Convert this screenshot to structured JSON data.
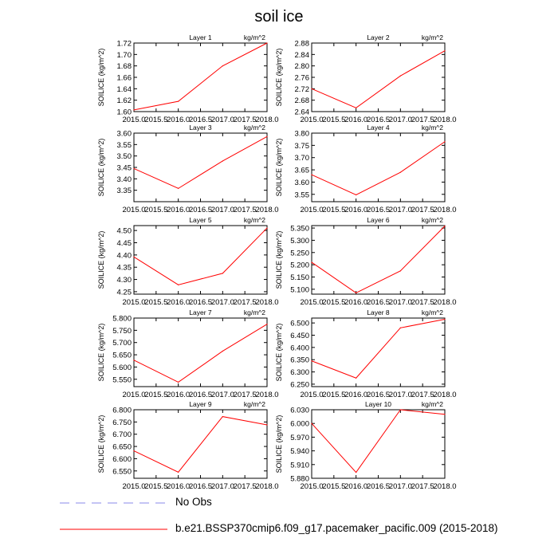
{
  "title": "soil ice",
  "chart_data": [
    {
      "type": "line",
      "title": "Layer 1",
      "units": "kg/m^2",
      "ylabel": "SOILICE  (kg/m^2)",
      "x": [
        2015,
        2016,
        2017,
        2018
      ],
      "ylim": [
        1.6,
        1.72
      ],
      "yticks": [
        "1.60",
        "1.62",
        "1.64",
        "1.66",
        "1.68",
        "1.70",
        "1.72"
      ],
      "series": [
        {
          "values": [
            1.603,
            1.618,
            1.68,
            1.72
          ]
        }
      ]
    },
    {
      "type": "line",
      "title": "Layer 2",
      "units": "kg/m^2",
      "ylabel": "SOILICE  (kg/m^2)",
      "x": [
        2015,
        2016,
        2017,
        2018
      ],
      "ylim": [
        2.64,
        2.88
      ],
      "yticks": [
        "2.64",
        "2.68",
        "2.72",
        "2.76",
        "2.80",
        "2.84",
        "2.88"
      ],
      "series": [
        {
          "values": [
            2.72,
            2.653,
            2.765,
            2.853
          ]
        }
      ]
    },
    {
      "type": "line",
      "title": "Layer 3",
      "units": "kg/m^2",
      "ylabel": "SOILICE  (kg/m^2)",
      "x": [
        2015,
        2016,
        2017,
        2018
      ],
      "ylim": [
        3.3,
        3.6
      ],
      "yticks": [
        "3.35",
        "3.40",
        "3.45",
        "3.50",
        "3.55",
        "3.60"
      ],
      "series": [
        {
          "values": [
            3.445,
            3.358,
            3.478,
            3.585
          ]
        }
      ]
    },
    {
      "type": "line",
      "title": "Layer 4",
      "units": "kg/m^2",
      "ylabel": "SOILICE  (kg/m^2)",
      "x": [
        2015,
        2016,
        2017,
        2018
      ],
      "ylim": [
        3.52,
        3.8
      ],
      "yticks": [
        "3.55",
        "3.60",
        "3.65",
        "3.70",
        "3.75",
        "3.80"
      ],
      "series": [
        {
          "values": [
            3.63,
            3.548,
            3.64,
            3.765
          ]
        }
      ]
    },
    {
      "type": "line",
      "title": "Layer 5",
      "units": "kg/m^2",
      "ylabel": "SOILICE  (kg/m^2)",
      "x": [
        2015,
        2016,
        2017,
        2018
      ],
      "ylim": [
        4.24,
        4.52
      ],
      "yticks": [
        "4.25",
        "4.30",
        "4.35",
        "4.40",
        "4.45",
        "4.50"
      ],
      "series": [
        {
          "values": [
            4.392,
            4.278,
            4.325,
            4.51
          ]
        }
      ]
    },
    {
      "type": "line",
      "title": "Layer 6",
      "units": "kg/m^2",
      "ylabel": "SOILICE  (kg/m^2)",
      "x": [
        2015,
        2016,
        2017,
        2018
      ],
      "ylim": [
        5.08,
        5.36
      ],
      "yticks": [
        "5.100",
        "5.150",
        "5.200",
        "5.250",
        "5.300",
        "5.350"
      ],
      "series": [
        {
          "values": [
            5.21,
            5.085,
            5.175,
            5.358
          ]
        }
      ]
    },
    {
      "type": "line",
      "title": "Layer 7",
      "units": "kg/m^2",
      "ylabel": "SOILICE  (kg/m^2)",
      "x": [
        2015,
        2016,
        2017,
        2018
      ],
      "ylim": [
        5.52,
        5.8
      ],
      "yticks": [
        "5.550",
        "5.600",
        "5.650",
        "5.700",
        "5.750",
        "5.800"
      ],
      "series": [
        {
          "values": [
            5.628,
            5.538,
            5.665,
            5.775
          ]
        }
      ]
    },
    {
      "type": "line",
      "title": "Layer 8",
      "units": "kg/m^2",
      "ylabel": "SOILICE  (kg/m^2)",
      "x": [
        2015,
        2016,
        2017,
        2018
      ],
      "ylim": [
        6.24,
        6.52
      ],
      "yticks": [
        "6.250",
        "6.300",
        "6.350",
        "6.400",
        "6.450",
        "6.500"
      ],
      "series": [
        {
          "values": [
            6.345,
            6.275,
            6.48,
            6.515
          ]
        }
      ]
    },
    {
      "type": "line",
      "title": "Layer 9",
      "units": "kg/m^2",
      "ylabel": "SOILICE  (kg/m^2)",
      "x": [
        2015,
        2016,
        2017,
        2018
      ],
      "ylim": [
        6.52,
        6.8
      ],
      "yticks": [
        "6.550",
        "6.600",
        "6.650",
        "6.700",
        "6.750",
        "6.800"
      ],
      "series": [
        {
          "values": [
            6.632,
            6.545,
            6.772,
            6.738
          ]
        }
      ]
    },
    {
      "type": "line",
      "title": "Layer 10",
      "units": "kg/m^2",
      "ylabel": "SOILICE  (kg/m^2)",
      "x": [
        2015,
        2016,
        2017,
        2018
      ],
      "ylim": [
        5.88,
        6.03
      ],
      "yticks": [
        "5.880",
        "5.910",
        "5.940",
        "5.970",
        "6.000",
        "6.030"
      ],
      "series": [
        {
          "values": [
            6.0,
            5.893,
            6.03,
            6.02
          ]
        }
      ]
    }
  ],
  "x_ticks": [
    "2015.0",
    "2015.5",
    "2016.0",
    "2016.5",
    "2017.0",
    "2017.5",
    "2018.0"
  ],
  "legend": [
    {
      "label": "No Obs",
      "color": "#8a8aea",
      "style": "dashed"
    },
    {
      "label": "b.e21.BSSP370cmip6.f09_g17.pacemaker_pacific.009 (2015-2018)",
      "color": "#ff0000",
      "style": "solid"
    }
  ]
}
